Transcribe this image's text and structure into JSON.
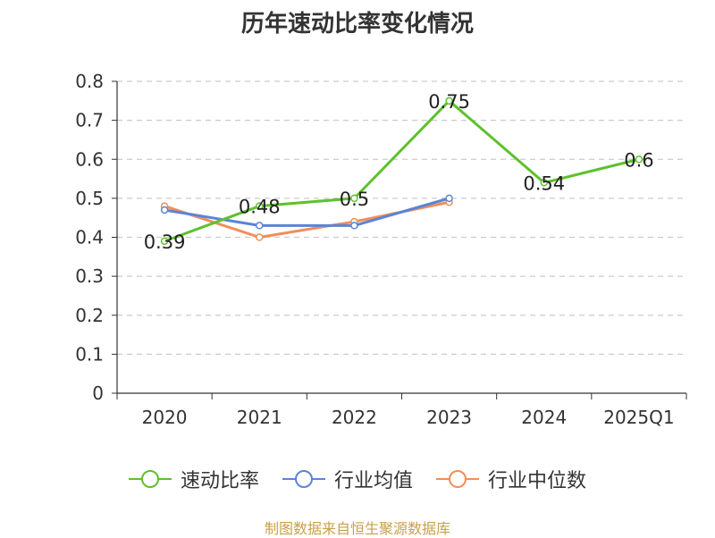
{
  "chart_data": {
    "type": "line",
    "title": "历年速动比率变化情况",
    "categories": [
      "2020",
      "2021",
      "2022",
      "2023",
      "2024",
      "2025Q1"
    ],
    "ylim": [
      0,
      0.8
    ],
    "yticks": [
      "0",
      "0.1",
      "0.2",
      "0.3",
      "0.4",
      "0.5",
      "0.6",
      "0.7",
      "0.8"
    ],
    "grid": true,
    "legend_position": "bottom-center",
    "series": [
      {
        "name": "速动比率",
        "color": "#5ec12c",
        "values": [
          0.39,
          0.48,
          0.5,
          0.75,
          0.54,
          0.6
        ],
        "labels": [
          "0.39",
          "0.48",
          "0.5",
          "0.75",
          "0.54",
          "0.6"
        ]
      },
      {
        "name": "行业均值",
        "color": "#5b84d6",
        "values": [
          0.47,
          0.43,
          0.43,
          0.5,
          null,
          null
        ]
      },
      {
        "name": "行业中位数",
        "color": "#f08e5a",
        "values": [
          0.48,
          0.4,
          0.44,
          0.49,
          null,
          null
        ]
      }
    ]
  },
  "source": "制图数据来自恒生聚源数据库"
}
